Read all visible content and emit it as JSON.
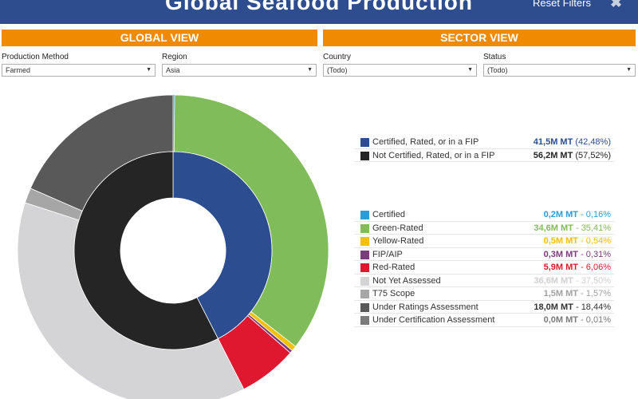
{
  "header": {
    "title": "Global Seafood Production",
    "reset_label": "Reset Filters",
    "close_glyph": "✖"
  },
  "sections": {
    "global_view": "GLOBAL VIEW",
    "sector_view": "SECTOR VIEW"
  },
  "filters": [
    {
      "label": "Production Method",
      "value": "Farmed"
    },
    {
      "label": "Region",
      "value": "Asia"
    },
    {
      "label": "Country",
      "value": "(Todo)"
    },
    {
      "label": "Status",
      "value": "(Todo)"
    }
  ],
  "colors": {
    "header_bg": "#2e4d8f",
    "section_bar": "#f08a00"
  },
  "chart_data": {
    "type": "pie",
    "variant": "nested-donut",
    "inner": {
      "items": [
        {
          "label": "Certified, Rated, or in a FIP",
          "amount": "41,5M MT",
          "percent_text": "(42,48%)",
          "percent": 42.48,
          "color": "#2c4d8f"
        },
        {
          "label": "Not Certified, Rated, or in a FIP",
          "amount": "56,2M MT",
          "percent_text": "(57,52%)",
          "percent": 57.52,
          "color": "#252525"
        }
      ]
    },
    "outer": {
      "items": [
        {
          "label": "Certified",
          "amount": "0,2M MT",
          "sep": "-",
          "percent_text": "0,16%",
          "percent": 0.16,
          "color": "#2a9ed8"
        },
        {
          "label": "Green-Rated",
          "amount": "34,6M MT",
          "sep": "-",
          "percent_text": "35,41%",
          "percent": 35.41,
          "color": "#80bc5a"
        },
        {
          "label": "Yellow-Rated",
          "amount": "0,5M MT",
          "sep": "-",
          "percent_text": "0,54%",
          "percent": 0.54,
          "color": "#f5c000"
        },
        {
          "label": "FIP/AIP",
          "amount": "0,3M MT",
          "sep": "-",
          "percent_text": "0,31%",
          "percent": 0.31,
          "color": "#7c3b7c"
        },
        {
          "label": "Red-Rated",
          "amount": "5,9M MT",
          "sep": "-",
          "percent_text": "6,06%",
          "percent": 6.06,
          "color": "#e0182f"
        },
        {
          "label": "Not Yet Assessed",
          "amount": "36,6M MT",
          "sep": "-",
          "percent_text": "37,50%",
          "percent": 37.5,
          "color": "#d4d4d6"
        },
        {
          "label": "T75 Scope",
          "amount": "1,5M MT",
          "sep": "-",
          "percent_text": "1,57%",
          "percent": 1.57,
          "color": "#a6a6a6"
        },
        {
          "label": "Under Ratings Assessment",
          "amount": "18,0M MT",
          "sep": "-",
          "percent_text": "18,44%",
          "percent": 18.44,
          "color": "#595959"
        },
        {
          "label": "Under Certification Assessment",
          "amount": "0,0M MT",
          "sep": "-",
          "percent_text": "0,01%",
          "percent": 0.01,
          "color": "#7b7b7b"
        }
      ]
    },
    "value_text_colors": [
      "#2a9ed8",
      "#80bc5a",
      "#f5c000",
      "#7c3b7c",
      "#e0182f",
      "#cfcfcf",
      "#a0a0a0",
      "#333333",
      "#7b7b7b"
    ]
  }
}
